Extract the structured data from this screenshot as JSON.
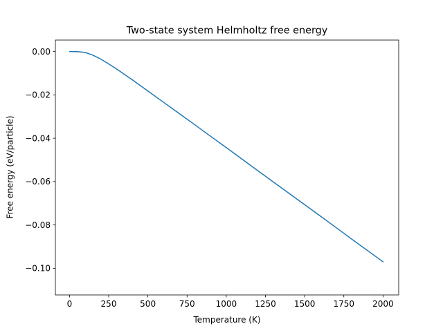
{
  "chart_data": {
    "type": "line",
    "title": "Two-state system Helmholtz free energy",
    "xlabel": "Temperature (K)",
    "ylabel": "Free energy (eV/particle)",
    "xlim": [
      -90,
      2100
    ],
    "ylim": [
      -0.1123,
      0.0053
    ],
    "xticks": [
      0,
      250,
      500,
      750,
      1000,
      1250,
      1500,
      1750,
      2000
    ],
    "xtick_labels": [
      "0",
      "250",
      "500",
      "750",
      "1000",
      "1250",
      "1500",
      "1750",
      "2000"
    ],
    "yticks": [
      0.0,
      -0.02,
      -0.04,
      -0.06,
      -0.08,
      -0.1
    ],
    "ytick_labels": [
      "0.00",
      "−0.02",
      "−0.04",
      "−0.06",
      "−0.08",
      "−0.10"
    ],
    "grid": false,
    "series": [
      {
        "color": "#1f77b4",
        "x": [
          1,
          50,
          100,
          150,
          200,
          250,
          300,
          350,
          400,
          450,
          500,
          600,
          700,
          800,
          900,
          1000,
          1200,
          1400,
          1600,
          1800,
          2000
        ],
        "y": [
          0.0,
          -4e-05,
          -0.0004,
          -0.0017,
          -0.0035,
          -0.0057,
          -0.008,
          -0.0105,
          -0.013,
          -0.0156,
          -0.0182,
          -0.0234,
          -0.0286,
          -0.0338,
          -0.0391,
          -0.0443,
          -0.0549,
          -0.0654,
          -0.0759,
          -0.0865,
          -0.097
        ]
      }
    ]
  }
}
